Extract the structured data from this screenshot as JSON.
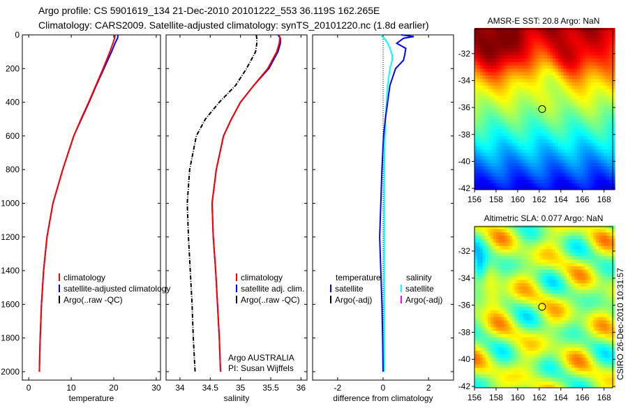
{
  "title_line1": "Argo profile: CS 5901619_134 21-Dec-2010 20101222_553 36.119S 162.265E",
  "title_line2": "Climatology: CARS2009. Satellite-adjusted climatology: synTS_20101220.nc (1.8d earlier)",
  "side_label": "CSIRO 26-Dec-2010 10:31:57",
  "colors": {
    "climatology": "#ff0000",
    "satellite": "#0000ff",
    "argo": "#000000",
    "sal_satellite": "#00ffff",
    "sal_argo": "#ff00ff"
  },
  "chart_data": [
    {
      "type": "line",
      "name": "temperature-profile",
      "xlabel": "temperature",
      "xlim": [
        -1.5,
        31
      ],
      "ylim": [
        2050,
        0
      ],
      "xticks": [
        "0",
        "10",
        "20",
        "30"
      ],
      "yticks": [
        "0",
        "200",
        "400",
        "600",
        "800",
        "1000",
        "1200",
        "1400",
        "1600",
        "1800",
        "2000"
      ],
      "legend": [
        "climatology",
        "satellite-adjusted climatology",
        "Argo(..raw -QC)"
      ],
      "depth": [
        0,
        20,
        50,
        100,
        150,
        200,
        300,
        400,
        500,
        600,
        800,
        1000,
        1200,
        1400,
        1600,
        1800,
        2000
      ],
      "series": [
        {
          "name": "climatology",
          "values": [
            20.3,
            20.2,
            19.8,
            19.1,
            18.3,
            17.5,
            15.8,
            14.1,
            12.3,
            10.6,
            8.0,
            5.7,
            4.3,
            3.5,
            3.0,
            2.7,
            2.5
          ]
        },
        {
          "name": "satellite",
          "values": [
            21.0,
            20.9,
            20.3,
            19.5,
            18.6,
            17.7,
            15.9,
            14.2,
            12.4,
            10.6,
            8.0,
            5.7,
            4.3,
            3.5,
            3.0,
            2.7,
            2.5
          ]
        }
      ]
    },
    {
      "type": "line",
      "name": "salinity-profile",
      "xlabel": "salinity",
      "xlim": [
        33.77,
        36.1
      ],
      "ylim": [
        2050,
        0
      ],
      "xticks": [
        "34",
        "34.5",
        "35",
        "35.5",
        "36"
      ],
      "legend": [
        "climatology",
        "satellite adj. clim.",
        "Argo(..raw -QC)"
      ],
      "annotation": [
        "Argo AUSTRALIA",
        "PI: Susan Wijffels"
      ],
      "depth": [
        0,
        20,
        50,
        100,
        200,
        300,
        400,
        500,
        600,
        800,
        1000,
        1200,
        1400,
        1600,
        1800,
        2000
      ],
      "series": [
        {
          "name": "climatology",
          "values": [
            35.64,
            35.65,
            35.64,
            35.6,
            35.45,
            35.22,
            35.0,
            34.85,
            34.72,
            34.6,
            34.53,
            34.55,
            34.59,
            34.62,
            34.65,
            34.67
          ]
        },
        {
          "name": "satellite",
          "values": [
            35.62,
            35.66,
            35.66,
            35.62,
            35.47,
            35.22,
            35.0,
            34.85,
            34.72,
            34.6,
            34.53,
            34.55,
            34.59,
            34.62,
            34.65,
            34.67
          ]
        },
        {
          "name": "argo",
          "values": [
            35.26,
            35.27,
            35.27,
            35.25,
            35.1,
            34.92,
            34.65,
            34.42,
            34.27,
            34.16,
            34.12,
            34.14,
            34.17,
            34.2,
            34.22,
            34.25
          ]
        }
      ]
    },
    {
      "type": "line",
      "name": "difference-profile",
      "xlabel": "difference from climatology",
      "xlim": [
        -3.1,
        3.1
      ],
      "ylim": [
        2050,
        0
      ],
      "xticks": [
        "-2",
        "0",
        "2"
      ],
      "legend_headers": [
        "temperature",
        "salinity"
      ],
      "legend_temp": [
        "satellite",
        "Argo(-adj)"
      ],
      "legend_sal": [
        "satellite",
        "Argo(-adj)"
      ],
      "depth": [
        0,
        10,
        20,
        50,
        80,
        120,
        150,
        200,
        300,
        400,
        500,
        600,
        800,
        1000,
        1200,
        1400,
        1600,
        1800,
        2000
      ],
      "series": [
        {
          "name": "temperature satellite",
          "values": [
            0.8,
            1.35,
            0.9,
            0.6,
            1.0,
            0.95,
            0.9,
            0.55,
            0.3,
            0.2,
            0.1,
            0.02,
            -0.05,
            -0.1,
            -0.15,
            -0.1,
            -0.05,
            -0.02,
            0
          ]
        },
        {
          "name": "salinity satellite",
          "values": [
            -0.1,
            -0.05,
            0.05,
            0.2,
            0.3,
            0.4,
            0.4,
            0.3,
            0.2,
            0.15,
            0.1,
            0.08,
            0.05,
            0.05,
            0.05,
            0.05,
            0.05,
            0.05,
            0.05
          ]
        }
      ]
    },
    {
      "type": "heatmap",
      "name": "amsr-sst-map",
      "title": "AMSR-E SST: 20.8 Argo: NaN",
      "xlim": [
        156,
        168.8
      ],
      "ylim": [
        -42.1,
        -30.2
      ],
      "xticks": [
        "156",
        "158",
        "160",
        "162",
        "164",
        "166",
        "168"
      ],
      "yticks": [
        "-32",
        "-34",
        "-36",
        "-38",
        "-40",
        "-42"
      ],
      "marker": [
        162.265,
        -36.119
      ]
    },
    {
      "type": "heatmap",
      "name": "altimetric-sla-map",
      "title": "Altimetric SLA: 0.077 Argo: NaN",
      "xlim": [
        156,
        168.8
      ],
      "ylim": [
        -42.1,
        -30.2
      ],
      "xticks": [
        "156",
        "158",
        "160",
        "162",
        "164",
        "166",
        "168"
      ],
      "yticks": [
        "-32",
        "-34",
        "-36",
        "-38",
        "-40",
        "-42"
      ],
      "marker": [
        162.265,
        -36.119
      ]
    }
  ]
}
